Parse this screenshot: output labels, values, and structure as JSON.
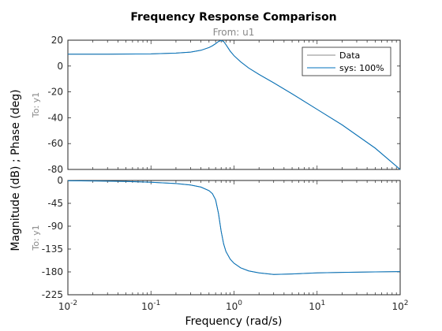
{
  "chart_data": {
    "type": "line",
    "title": "Frequency Response Comparison",
    "subtitle": "From: u1",
    "xlabel": "Frequency  (rad/s)",
    "ylabel": "Magnitude (dB) ; Phase (deg)",
    "x_scale": "log",
    "xlim": [
      0.01,
      100
    ],
    "x_ticks": [
      {
        "value": 0.01,
        "base": "10",
        "exp": "-2"
      },
      {
        "value": 0.1,
        "base": "10",
        "exp": "-1"
      },
      {
        "value": 1,
        "base": "10",
        "exp": "0"
      },
      {
        "value": 10,
        "base": "10",
        "exp": "1"
      },
      {
        "value": 100,
        "base": "10",
        "exp": "2"
      }
    ],
    "grid": false,
    "legend": {
      "position": "top-right",
      "entries": [
        "Data",
        "sys: 100%"
      ]
    },
    "series_colors": {
      "Data": "#888888",
      "sys: 100%": "#0072bd"
    },
    "panels": [
      {
        "name": "magnitude",
        "row_label": "To: y1",
        "ylim": [
          -80,
          20
        ],
        "yticks": [
          20,
          0,
          -20,
          -40,
          -60,
          -80
        ],
        "tick_labels": [
          "20",
          "0",
          "-20",
          "-40",
          "-60",
          "-80"
        ],
        "series": [
          {
            "name": "sys: 100%",
            "x": [
              0.01,
              0.03,
              0.1,
              0.2,
              0.3,
              0.4,
              0.5,
              0.55,
              0.6,
              0.65,
              0.7,
              0.75,
              0.8,
              0.9,
              1,
              1.2,
              1.5,
              2,
              3,
              5,
              10,
              20,
              50,
              100
            ],
            "y": [
              9.2,
              9.2,
              9.4,
              10,
              10.8,
              12.2,
              14.3,
              15.7,
              17.3,
              19,
              19.8,
              19,
              16.5,
              11.5,
              8,
              3.3,
              -1.5,
              -6.5,
              -13,
              -21.5,
              -33.5,
              -45.5,
              -63.5,
              -80
            ]
          }
        ]
      },
      {
        "name": "phase",
        "row_label": "To: y1",
        "ylim": [
          -225,
          0
        ],
        "yticks": [
          0,
          -45,
          -90,
          -135,
          -180,
          -225
        ],
        "tick_labels": [
          "0",
          "-45",
          "-90",
          "-135",
          "-180",
          "-225"
        ],
        "series": [
          {
            "name": "sys: 100%",
            "x": [
              0.01,
              0.02,
              0.05,
              0.1,
              0.2,
              0.3,
              0.4,
              0.5,
              0.55,
              0.6,
              0.65,
              0.7,
              0.75,
              0.8,
              0.9,
              1,
              1.2,
              1.5,
              2,
              3,
              5,
              10,
              20,
              50,
              100
            ],
            "y": [
              -0.5,
              -1,
              -2,
              -3.5,
              -6,
              -9,
              -13,
              -20,
              -26,
              -38,
              -65,
              -100,
              -125,
              -140,
              -155,
              -163,
              -172,
              -178,
              -182,
              -185,
              -184,
              -182,
              -181,
              -180,
              -179.5
            ]
          }
        ]
      }
    ]
  }
}
